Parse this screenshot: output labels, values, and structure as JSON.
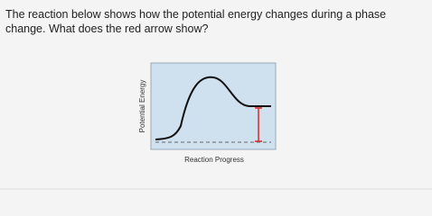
{
  "question": {
    "line1": "The reaction below shows how the potential energy changes during a phase",
    "line2": "change. What does the red arrow show?"
  },
  "diagram": {
    "y_label": "Potential Energy",
    "x_label": "Reaction Progress"
  }
}
